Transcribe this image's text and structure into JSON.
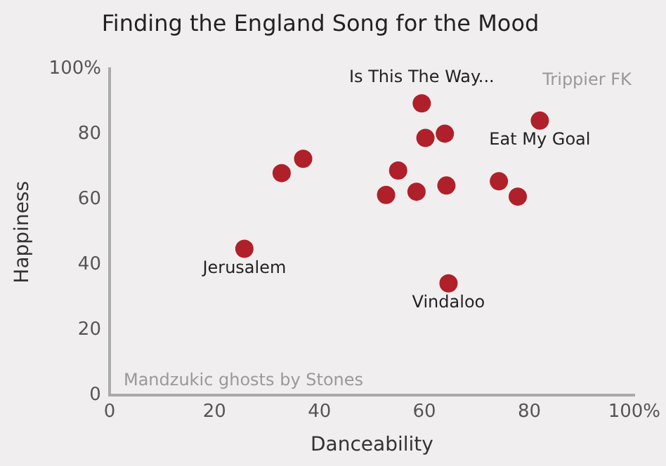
{
  "chart_data": {
    "type": "scatter",
    "title": "Finding the England Song for the Mood",
    "xlabel": "Danceability",
    "ylabel": "Happiness",
    "x": [
      59.5,
      60.2,
      63.9,
      82.0,
      32.8,
      36.9,
      55.0,
      52.7,
      58.5,
      64.2,
      74.2,
      77.8,
      25.7,
      64.6
    ],
    "series": [
      {
        "color": "#b0202a",
        "values": [
          89.5,
          78.9,
          80.2,
          84.2,
          68.1,
          72.5,
          68.9,
          61.4,
          62.4,
          64.3,
          65.6,
          60.9,
          44.9,
          34.3
        ]
      }
    ],
    "xlim": [
      0,
      100
    ],
    "ylim": [
      0,
      100
    ],
    "xticks": [
      0,
      20,
      40,
      60,
      80,
      {
        "value": 100,
        "label": "100%"
      }
    ],
    "yticks": [
      0,
      20,
      40,
      60,
      80,
      {
        "value": 100,
        "label": "100%"
      }
    ],
    "grid": false,
    "legend": false,
    "marker": "circle",
    "annotations": [
      {
        "text": "Is This The Way...",
        "x": 59.5,
        "y": 89.5
      },
      {
        "text": "Eat My Goal",
        "x": 82.0,
        "y": 84.2
      },
      {
        "text": "Jerusalem",
        "x": 25.7,
        "y": 44.9
      },
      {
        "text": "Vindaloo",
        "x": 64.6,
        "y": 34.3
      },
      "Trippier FK",
      "Mandzukic ghosts by Stones"
    ]
  }
}
